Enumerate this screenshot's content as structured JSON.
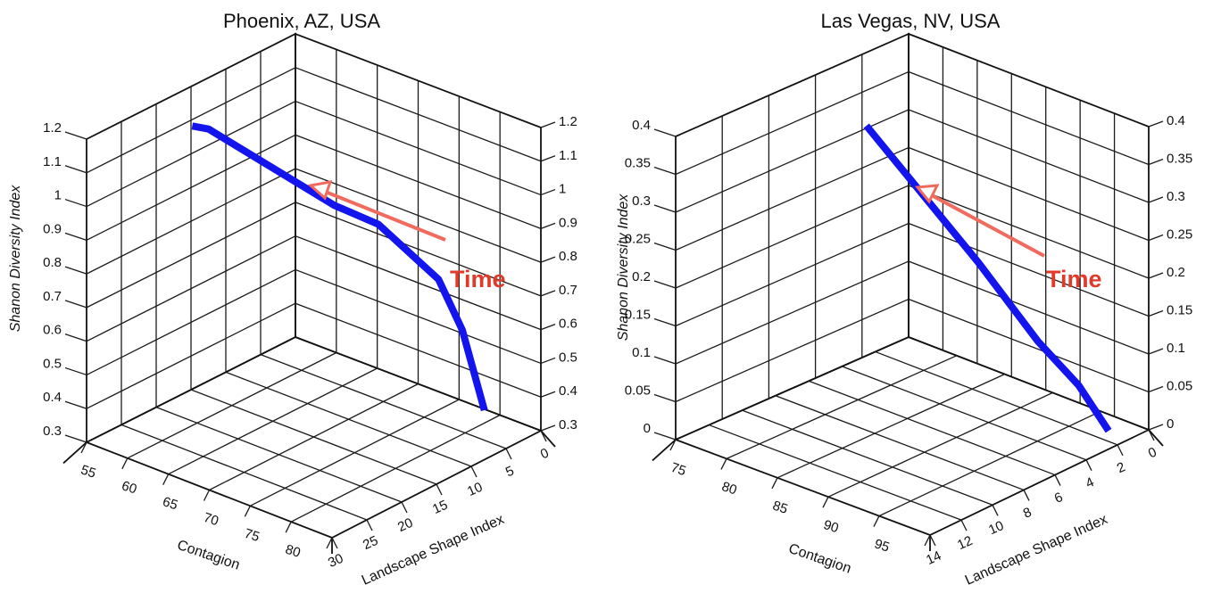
{
  "chart_data": [
    {
      "type": "line",
      "title": "Phoenix, AZ, USA",
      "zlabel": "Shanon Diversity Index",
      "xlabel": "Contagion",
      "ylabel": "Landscape Shape Index",
      "zlim": [
        0.3,
        1.2
      ],
      "z_ticks": [
        "0.3",
        "0.4",
        "0.5",
        "0.6",
        "0.7",
        "0.8",
        "0.9",
        "1",
        "1.1",
        "1.2"
      ],
      "xlim": [
        55,
        85
      ],
      "x_ticks": [
        "55",
        "60",
        "65",
        "70",
        "75",
        "80"
      ],
      "ylim": [
        30,
        0
      ],
      "y_ticks": [
        "30",
        "25",
        "20",
        "15",
        "10",
        "5",
        "0"
      ],
      "grid": true,
      "annotation": "Time",
      "series": [
        {
          "color": "#1414ee",
          "points": [
            {
              "contagion": 81.5,
              "shape_index": 4,
              "diversity": 0.37
            },
            {
              "contagion": 80.5,
              "shape_index": 6,
              "diversity": 0.62
            },
            {
              "contagion": 79.3,
              "shape_index": 8,
              "diversity": 0.78
            },
            {
              "contagion": 74.5,
              "shape_index": 11,
              "diversity": 0.93
            },
            {
              "contagion": 72.5,
              "shape_index": 15,
              "diversity": 1.01
            },
            {
              "contagion": 58,
              "shape_index": 16,
              "diversity": 1.11
            },
            {
              "contagion": 56,
              "shape_index": 16,
              "diversity": 1.1
            }
          ]
        }
      ]
    },
    {
      "type": "line",
      "title": "Las Vegas, NV, USA",
      "zlabel": "Shanon Diversity Index",
      "xlabel": "Contagion",
      "ylabel": "Landscape Shape Index",
      "zlim": [
        0,
        0.4
      ],
      "z_ticks": [
        "0",
        "0.05",
        "0.1",
        "0.15",
        "0.2",
        "0.25",
        "0.3",
        "0.35",
        "0.4"
      ],
      "xlim": [
        75,
        100
      ],
      "x_ticks": [
        "75",
        "80",
        "85",
        "90",
        "95"
      ],
      "ylim": [
        14,
        0
      ],
      "y_ticks": [
        "14",
        "12",
        "10",
        "8",
        "6",
        "4",
        "2",
        "0"
      ],
      "grid": true,
      "annotation": "Time",
      "series": [
        {
          "color": "#1414ee",
          "points": [
            {
              "contagion": 97.9,
              "shape_index": 1.2,
              "diversity": 0.0
            },
            {
              "contagion": 97.1,
              "shape_index": 2.6,
              "diversity": 0.07
            },
            {
              "contagion": 96.8,
              "shape_index": 5,
              "diversity": 0.15
            },
            {
              "contagion": 94,
              "shape_index": 7,
              "diversity": 0.26
            },
            {
              "contagion": 83,
              "shape_index": 7,
              "diversity": 0.385
            }
          ]
        }
      ]
    }
  ]
}
